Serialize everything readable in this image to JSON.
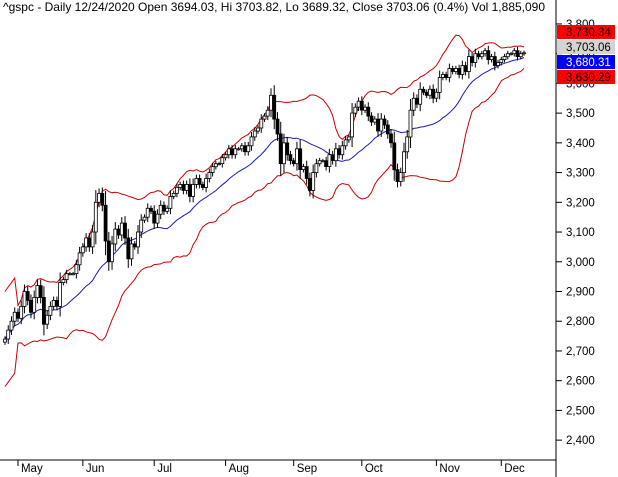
{
  "header": {
    "text": "^gspc - Daily 12/24/2020 Open 3694.03, Hi 3703.82, Lo 3689.32, Close 3703.06 (0.4%) Vol 1,885,090"
  },
  "colors": {
    "price": "#000000",
    "upper_band": "#cc0000",
    "lower_band": "#cc0000",
    "middle_band": "#1a1ab4",
    "tag_upper_bg": "#ff0000",
    "tag_close_bg": "#d4d4d4",
    "tag_middle_bg": "#0000ff",
    "tag_lower_bg": "#ff0000"
  },
  "chart_data": {
    "type": "candlestick",
    "ylim": [
      2350,
      3820
    ],
    "y_ticks": [
      2400,
      2500,
      2600,
      2700,
      2800,
      2900,
      3000,
      3100,
      3200,
      3300,
      3400,
      3500,
      3600,
      3700,
      3800
    ],
    "y_tick_labels": [
      "2,400",
      "2,500",
      "2,600",
      "2,700",
      "2,800",
      "2,900",
      "3,000",
      "3,100",
      "3,200",
      "3,300",
      "3,400",
      "3,500",
      "3,600",
      "3,700",
      "3,800"
    ],
    "months": [
      {
        "label": "May",
        "index": 4
      },
      {
        "label": "Jun",
        "index": 24
      },
      {
        "label": "Jul",
        "index": 46
      },
      {
        "label": "Aug",
        "index": 68
      },
      {
        "label": "Sep",
        "index": 89
      },
      {
        "label": "Oct",
        "index": 110
      },
      {
        "label": "Nov",
        "index": 133
      },
      {
        "label": "Dec",
        "index": 153
      }
    ],
    "right_tags": [
      {
        "label": "3,730.34",
        "value": 3730.34,
        "role": "upper"
      },
      {
        "label": "3,703.06",
        "value": 3703.06,
        "role": "close"
      },
      {
        "label": "3,680.31",
        "value": 3680.31,
        "role": "middle"
      },
      {
        "label": "3,630.29",
        "value": 3630.29,
        "role": "lower"
      }
    ],
    "close": [
      2740,
      2770,
      2800,
      2830,
      2810,
      2850,
      2900,
      2870,
      2830,
      2880,
      2920,
      2880,
      2790,
      2820,
      2850,
      2870,
      2850,
      2930,
      2940,
      2960,
      2960,
      2960,
      2990,
      3030,
      3050,
      3080,
      3050,
      3100,
      3200,
      3230,
      3190,
      3070,
      3000,
      3060,
      3110,
      3090,
      3130,
      3080,
      3010,
      3060,
      3050,
      3100,
      3140,
      3150,
      3180,
      3170,
      3130,
      3160,
      3190,
      3170,
      3180,
      3220,
      3230,
      3250,
      3260,
      3240,
      3260,
      3220,
      3260,
      3280,
      3260,
      3250,
      3280,
      3300,
      3320,
      3330,
      3330,
      3350,
      3360,
      3380,
      3360,
      3380,
      3380,
      3390,
      3370,
      3390,
      3420,
      3440,
      3450,
      3480,
      3490,
      3510,
      3560,
      3480,
      3430,
      3330,
      3400,
      3360,
      3340,
      3330,
      3380,
      3310,
      3320,
      3280,
      3240,
      3300,
      3330,
      3340,
      3340,
      3320,
      3360,
      3340,
      3380,
      3360,
      3390,
      3410,
      3420,
      3500,
      3520,
      3540,
      3510,
      3520,
      3490,
      3470,
      3480,
      3440,
      3480,
      3460,
      3430,
      3400,
      3310,
      3270,
      3300,
      3370,
      3420,
      3510,
      3550,
      3530,
      3580,
      3570,
      3560,
      3580,
      3550,
      3570,
      3620,
      3630,
      3620,
      3650,
      3640,
      3650,
      3630,
      3660,
      3640,
      3690,
      3670,
      3700,
      3690,
      3700,
      3710,
      3680,
      3690,
      3660,
      3670,
      3680,
      3690,
      3700,
      3700,
      3710,
      3690,
      3700,
      3703
    ]
  }
}
